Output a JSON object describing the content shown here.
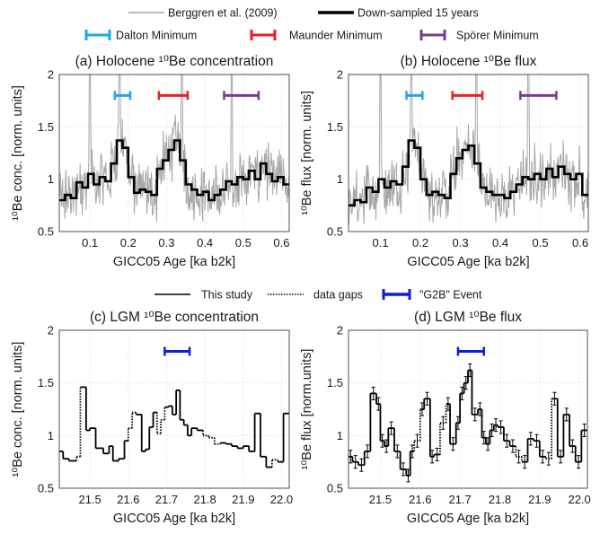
{
  "legend_top": [
    {
      "label": "Berggren et al. (2009)",
      "color": "#a6a6a6",
      "style": "thin-solid"
    },
    {
      "label": "Down-sampled 15 years",
      "color": "#000000",
      "style": "thick-solid"
    }
  ],
  "minima_legend": [
    {
      "label": "Dalton Minimum",
      "color": "#1ea7e8"
    },
    {
      "label": "Maunder Minimum",
      "color": "#e81e25"
    },
    {
      "label": "Spörer Minimum",
      "color": "#7a3b8e"
    }
  ],
  "legend_bottom": [
    {
      "label": "This study",
      "style": "solid",
      "color": "#000000"
    },
    {
      "label": "data gaps",
      "style": "dotted",
      "color": "#000000"
    },
    {
      "label": "\"G2B\" Event",
      "style": "range",
      "color": "#0a1fd6"
    }
  ],
  "chart_data": [
    {
      "id": "a",
      "type": "line",
      "title": "(a) Holocene ¹⁰Be concentration",
      "xlabel": "GICC05 Age [ka b2k]",
      "ylabel": "¹⁰Be conc. [norm. units]",
      "xlim": [
        0.02,
        0.62
      ],
      "ylim": [
        0.5,
        2
      ],
      "xticks": [
        "0.1",
        "0.2",
        "0.3",
        "0.4",
        "0.5",
        "0.6"
      ],
      "yticks": [
        "0.5",
        "1",
        "1.5",
        "2"
      ],
      "grid": true,
      "ranges": [
        {
          "name": "Dalton Minimum",
          "x": [
            0.165,
            0.205
          ],
          "y": 1.8,
          "color": "#1ea7e8"
        },
        {
          "name": "Maunder Minimum",
          "x": [
            0.28,
            0.355
          ],
          "y": 1.8,
          "color": "#e81e25"
        },
        {
          "name": "Spörer Minimum",
          "x": [
            0.45,
            0.54
          ],
          "y": 1.8,
          "color": "#7a3b8e"
        }
      ],
      "series": [
        {
          "name": "Down-sampled 15 years",
          "style": "step",
          "color": "#000000",
          "x": [
            0.02,
            0.035,
            0.05,
            0.065,
            0.08,
            0.095,
            0.11,
            0.125,
            0.14,
            0.155,
            0.17,
            0.185,
            0.2,
            0.215,
            0.23,
            0.245,
            0.26,
            0.275,
            0.29,
            0.305,
            0.32,
            0.335,
            0.35,
            0.365,
            0.38,
            0.395,
            0.41,
            0.425,
            0.44,
            0.455,
            0.47,
            0.485,
            0.5,
            0.515,
            0.53,
            0.545,
            0.56,
            0.575,
            0.59,
            0.605
          ],
          "y": [
            0.8,
            0.85,
            0.82,
            0.97,
            0.92,
            1.05,
            0.95,
            1.02,
            0.98,
            1.15,
            1.37,
            1.3,
            1.02,
            0.87,
            0.9,
            0.88,
            0.85,
            1.1,
            1.18,
            1.28,
            1.37,
            1.18,
            0.95,
            0.9,
            0.85,
            0.88,
            0.8,
            0.85,
            0.9,
            0.98,
            0.95,
            1.02,
            1.0,
            1.08,
            1.0,
            1.15,
            1.05,
            0.98,
            1.02,
            0.95
          ]
        },
        {
          "name": "Berggren et al. (2009)",
          "style": "noisy-line",
          "color": "#a6a6a6",
          "noise": 0.22,
          "spikes": [
            0.1,
            0.177,
            0.34,
            0.47
          ]
        }
      ]
    },
    {
      "id": "b",
      "type": "line",
      "title": "(b) Holocene ¹⁰Be flux",
      "xlabel": "GICC05 Age [ka b2k]",
      "ylabel": "¹⁰Be flux [norm. units]",
      "xlim": [
        0.02,
        0.62
      ],
      "ylim": [
        0.5,
        2
      ],
      "xticks": [
        "0.1",
        "0.2",
        "0.3",
        "0.4",
        "0.5",
        "0.6"
      ],
      "yticks": [
        "0.5",
        "1",
        "1.5",
        "2"
      ],
      "grid": true,
      "ranges": [
        {
          "name": "Dalton Minimum",
          "x": [
            0.165,
            0.205
          ],
          "y": 1.8,
          "color": "#1ea7e8"
        },
        {
          "name": "Maunder Minimum",
          "x": [
            0.28,
            0.355
          ],
          "y": 1.8,
          "color": "#e81e25"
        },
        {
          "name": "Spörer Minimum",
          "x": [
            0.45,
            0.54
          ],
          "y": 1.8,
          "color": "#7a3b8e"
        }
      ],
      "series": [
        {
          "name": "Down-sampled 15 years",
          "style": "step",
          "color": "#000000",
          "x": [
            0.02,
            0.035,
            0.05,
            0.065,
            0.08,
            0.095,
            0.11,
            0.125,
            0.14,
            0.155,
            0.17,
            0.185,
            0.2,
            0.215,
            0.23,
            0.245,
            0.26,
            0.275,
            0.29,
            0.305,
            0.32,
            0.335,
            0.35,
            0.365,
            0.38,
            0.395,
            0.41,
            0.425,
            0.44,
            0.455,
            0.47,
            0.485,
            0.5,
            0.515,
            0.53,
            0.545,
            0.56,
            0.575,
            0.59,
            0.605
          ],
          "y": [
            0.75,
            0.8,
            0.78,
            0.92,
            0.88,
            1.0,
            0.92,
            0.98,
            0.95,
            1.12,
            1.37,
            1.3,
            1.0,
            0.85,
            0.88,
            0.85,
            0.82,
            1.05,
            1.2,
            1.28,
            1.32,
            1.15,
            0.92,
            0.88,
            0.85,
            0.85,
            0.82,
            0.88,
            0.95,
            1.02,
            1.0,
            1.05,
            1.0,
            1.1,
            1.02,
            1.12,
            1.05,
            1.0,
            1.05,
            0.85
          ]
        },
        {
          "name": "Berggren et al. (2009)",
          "style": "noisy-line",
          "color": "#a6a6a6",
          "noise": 0.22,
          "spikes": [
            0.1,
            0.177,
            0.34,
            0.47
          ]
        }
      ]
    },
    {
      "id": "c",
      "type": "line",
      "title": "(c) LGM ¹⁰Be concentration",
      "xlabel": "GICC05 Age [ka b2k]",
      "ylabel": "¹⁰Be conc. [norm. units]",
      "xlim": [
        21.42,
        22.02
      ],
      "ylim": [
        0.5,
        2
      ],
      "xticks": [
        "21.5",
        "21.6",
        "21.7",
        "21.8",
        "21.9",
        "22.0"
      ],
      "yticks": [
        "0.5",
        "1",
        "1.5",
        "2"
      ],
      "grid": true,
      "ranges": [
        {
          "name": "\"G2B\" Event",
          "x": [
            21.695,
            21.76
          ],
          "y": 1.8,
          "color": "#0a1fd6"
        }
      ],
      "series": [
        {
          "name": "This study",
          "style": "step-segments",
          "color": "#000000",
          "errorbars": false,
          "x": [
            21.42,
            21.43,
            21.445,
            21.465,
            21.475,
            21.48,
            21.49,
            21.5,
            21.515,
            21.525,
            21.535,
            21.55,
            21.56,
            21.575,
            21.59,
            21.6,
            21.61,
            21.62,
            21.635,
            21.645,
            21.655,
            21.665,
            21.675,
            21.685,
            21.695,
            21.705,
            21.715,
            21.725,
            21.735,
            21.745,
            21.755,
            21.765,
            21.78,
            21.795,
            21.81,
            21.825,
            21.84,
            21.855,
            21.87,
            21.885,
            21.9,
            21.915,
            21.93,
            21.945,
            21.96,
            21.975,
            21.99,
            22.005
          ],
          "y": [
            0.85,
            0.78,
            0.76,
            0.8,
            1.46,
            1.46,
            1.05,
            1.07,
            0.88,
            0.88,
            0.83,
            0.9,
            0.76,
            0.78,
            0.95,
            1.07,
            1.22,
            1.2,
            0.85,
            0.87,
            1.08,
            1.22,
            1.02,
            1.15,
            1.27,
            1.28,
            1.2,
            1.43,
            1.15,
            1.1,
            1.0,
            1.07,
            1.05,
            1.0,
            0.98,
            0.92,
            0.93,
            0.92,
            0.9,
            0.88,
            0.9,
            0.85,
            1.21,
            0.8,
            0.7,
            0.77,
            0.75,
            1.21
          ],
          "gaps": [
            [
              21.465,
              21.475
            ],
            [
              21.595,
              21.615
            ],
            [
              21.67,
              21.695
            ],
            [
              21.79,
              21.84
            ],
            [
              21.965,
              21.99
            ]
          ]
        }
      ]
    },
    {
      "id": "d",
      "type": "line",
      "title": "(d) LGM ¹⁰Be flux",
      "xlabel": "GICC05 Age [ka b2k]",
      "ylabel": "¹⁰Be flux [norm.units]",
      "xlim": [
        21.42,
        22.02
      ],
      "ylim": [
        0.5,
        2
      ],
      "xticks": [
        "21.5",
        "21.6",
        "21.7",
        "21.8",
        "21.9",
        "22.0"
      ],
      "yticks": [
        "0.5",
        "1",
        "1.5",
        "2"
      ],
      "grid": true,
      "ranges": [
        {
          "name": "\"G2B\" Event",
          "x": [
            21.695,
            21.76
          ],
          "y": 1.8,
          "color": "#0a1fd6"
        }
      ],
      "series": [
        {
          "name": "This study",
          "style": "step-segments",
          "color": "#000000",
          "errorbars": true,
          "x": [
            21.42,
            21.43,
            21.445,
            21.46,
            21.475,
            21.49,
            21.5,
            21.51,
            21.52,
            21.535,
            21.55,
            21.565,
            21.575,
            21.585,
            21.6,
            21.61,
            21.625,
            21.635,
            21.65,
            21.665,
            21.675,
            21.69,
            21.7,
            21.71,
            21.72,
            21.73,
            21.745,
            21.755,
            21.765,
            21.775,
            21.785,
            21.795,
            21.81,
            21.825,
            21.84,
            21.855,
            21.87,
            21.885,
            21.9,
            21.915,
            21.93,
            21.945,
            21.96,
            21.975,
            21.99,
            22.005
          ],
          "y": [
            0.8,
            0.75,
            0.72,
            0.85,
            1.4,
            1.3,
            0.95,
            0.9,
            1.07,
            0.85,
            0.68,
            0.62,
            0.85,
            0.95,
            1.25,
            1.35,
            0.8,
            0.82,
            1.12,
            1.3,
            0.92,
            1.12,
            1.4,
            1.5,
            1.62,
            1.2,
            1.25,
            0.98,
            0.92,
            1.05,
            1.1,
            1.08,
            0.95,
            0.9,
            0.8,
            0.75,
            0.97,
            0.95,
            0.8,
            0.78,
            1.35,
            0.8,
            1.2,
            0.9,
            0.75,
            1.05
          ],
          "gaps": [
            [
              21.58,
              21.6
            ],
            [
              21.64,
              21.665
            ],
            [
              21.83,
              21.855
            ],
            [
              21.915,
              21.93
            ]
          ]
        }
      ]
    }
  ]
}
